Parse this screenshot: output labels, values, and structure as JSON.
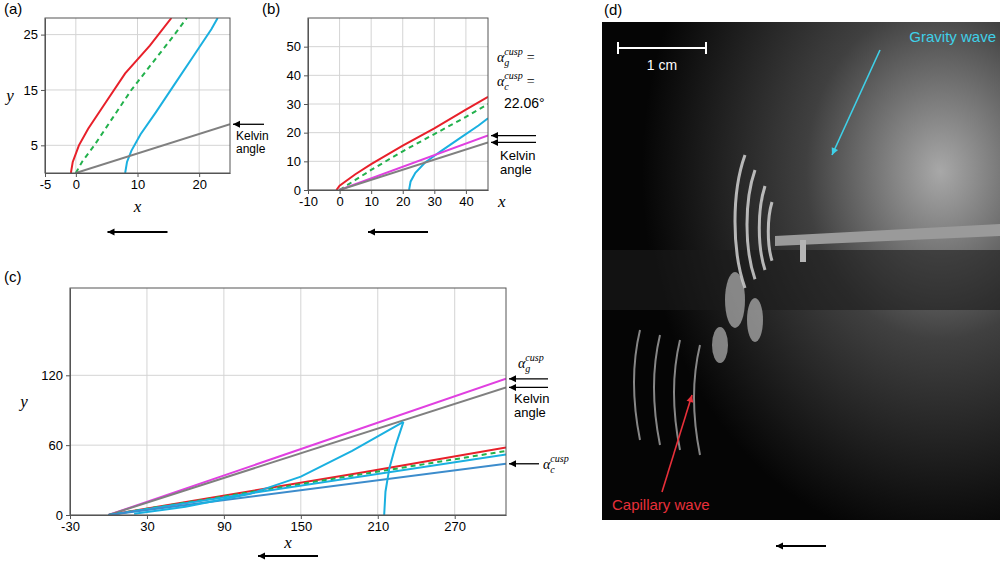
{
  "chart_data": [
    {
      "type": "line",
      "panel": "(a)",
      "x_label": "x",
      "y_label": "y",
      "xlim": [
        -5,
        25
      ],
      "ylim": [
        0,
        28
      ],
      "xticks": [
        -5,
        0,
        10,
        20
      ],
      "yticks": [
        5,
        15,
        25
      ],
      "grid": true,
      "series": [
        {
          "color": "#e8202a",
          "line_style": "solid",
          "x": [
            -0.8,
            -0.5,
            0.5,
            2,
            5,
            8,
            12,
            15.5
          ],
          "values": [
            0,
            2,
            5,
            8,
            13,
            18,
            23,
            28
          ]
        },
        {
          "color": "#22b14c",
          "line_style": "dashed",
          "x": [
            0,
            1,
            3,
            6,
            9,
            12.5,
            16,
            18
          ],
          "values": [
            0,
            2,
            5,
            10,
            15,
            20,
            25,
            28
          ]
        },
        {
          "color": "#1ab0e0",
          "line_style": "solid",
          "x": [
            8,
            8.3,
            9,
            10.5,
            13,
            16,
            19,
            22,
            23
          ],
          "values": [
            0,
            2,
            4,
            7,
            11,
            16,
            21,
            26,
            28
          ]
        },
        {
          "color": "#808080",
          "line_style": "solid",
          "x": [
            0,
            25
          ],
          "values": [
            0,
            8.8
          ]
        }
      ],
      "annotations": [
        {
          "text": "Kelvin angle"
        }
      ]
    },
    {
      "type": "line",
      "panel": "(b)",
      "x_label": "x",
      "xlim": [
        -10,
        47
      ],
      "ylim": [
        0,
        60
      ],
      "xticks": [
        -10,
        0,
        10,
        20,
        30,
        40
      ],
      "yticks": [
        0,
        10,
        20,
        30,
        40,
        50
      ],
      "grid": true,
      "series": [
        {
          "color": "#e8202a",
          "line_style": "solid",
          "x": [
            -1,
            0,
            5,
            10,
            20,
            30,
            40,
            47
          ],
          "values": [
            0,
            1.5,
            5.5,
            9,
            15.5,
            21.5,
            28,
            32.5
          ]
        },
        {
          "color": "#22b14c",
          "line_style": "dashed",
          "x": [
            0,
            5,
            10,
            20,
            30,
            40,
            47
          ],
          "values": [
            0,
            3.5,
            7,
            13.5,
            19.5,
            25.5,
            30
          ]
        },
        {
          "color": "#1ab0e0",
          "line_style": "solid",
          "x": [
            22,
            22.5,
            24,
            27,
            32,
            38,
            44,
            47
          ],
          "values": [
            0,
            3,
            6,
            9.5,
            13.5,
            18,
            22.5,
            25
          ]
        },
        {
          "color": "#e040e0",
          "line_style": "solid",
          "x": [
            0,
            47
          ],
          "values": [
            0,
            19
          ]
        },
        {
          "color": "#808080",
          "line_style": "solid",
          "x": [
            0,
            47
          ],
          "values": [
            0,
            16.6
          ]
        }
      ],
      "annotations": [
        {
          "symbol": "α",
          "sub": "g",
          "sup": "cusp",
          "text": "="
        },
        {
          "symbol": "α",
          "sub": "c",
          "sup": "cusp",
          "text": "="
        },
        {
          "text": "22.06°"
        },
        {
          "text": "Kelvin angle"
        }
      ]
    },
    {
      "type": "line",
      "panel": "(c)",
      "x_label": "x",
      "y_label": "y",
      "xlim": [
        -30,
        310
      ],
      "ylim": [
        0,
        195
      ],
      "xticks": [
        -30,
        30,
        90,
        150,
        210,
        270
      ],
      "yticks": [
        0,
        60,
        120
      ],
      "grid": true,
      "series": [
        {
          "color": "#e040e0",
          "line_style": "solid",
          "x": [
            0,
            310
          ],
          "values": [
            0,
            117
          ]
        },
        {
          "color": "#808080",
          "line_style": "solid",
          "x": [
            0,
            310
          ],
          "values": [
            0,
            109.6
          ]
        },
        {
          "color": "#e8202a",
          "line_style": "solid",
          "x": [
            0,
            100,
            200,
            310
          ],
          "values": [
            0,
            18.5,
            37,
            58
          ]
        },
        {
          "color": "#22b14c",
          "line_style": "dashed",
          "x": [
            0,
            310
          ],
          "values": [
            0,
            55
          ]
        },
        {
          "color": "#1ab0e0",
          "line_style": "solid",
          "x": [
            0,
            310
          ],
          "values": [
            0,
            52
          ]
        },
        {
          "color": "#3c8ccc",
          "line_style": "solid",
          "x": [
            0,
            310
          ],
          "values": [
            0,
            44
          ]
        },
        {
          "color": "#1ab0e0",
          "line_style": "solid",
          "x": [
            215,
            216,
            219,
            224,
            230
          ],
          "values": [
            0,
            20,
            40,
            60,
            80
          ]
        },
        {
          "color": "#1ab0e0",
          "line_style": "solid",
          "x": [
            230,
            190,
            150,
            110,
            60,
            20
          ],
          "values": [
            80,
            55,
            33,
            18,
            7,
            1
          ]
        }
      ],
      "annotations": [
        {
          "symbol": "α",
          "sub": "g",
          "sup": "cusp"
        },
        {
          "text": "Kelvin angle"
        },
        {
          "symbol": "α",
          "sub": "c",
          "sup": "cusp"
        }
      ]
    }
  ],
  "photo": {
    "panel": "(d)",
    "scale_bar": "1 cm",
    "labels": [
      {
        "text": "Gravity wave",
        "color": "#3fd0e8"
      },
      {
        "text": "Capillary wave",
        "color": "#e8303a"
      }
    ]
  }
}
